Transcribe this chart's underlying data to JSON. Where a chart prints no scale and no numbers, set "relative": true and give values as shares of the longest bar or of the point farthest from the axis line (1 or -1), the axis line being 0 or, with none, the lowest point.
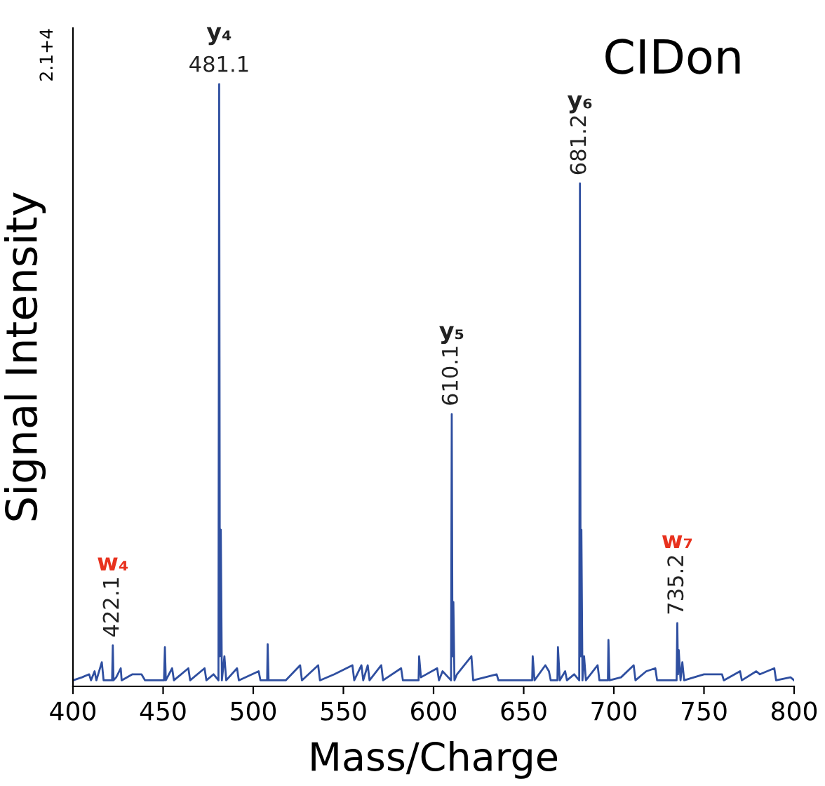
{
  "chart_data": {
    "type": "line",
    "title": "CIDon",
    "xlabel": "Mass/Charge",
    "ylabel": "Signal Intensity",
    "relative": true,
    "xlim": [
      400,
      800
    ],
    "xticks": [
      400,
      450,
      500,
      550,
      600,
      650,
      700,
      750,
      800
    ],
    "grid": false,
    "legend": false,
    "marker": "none",
    "line_style": "solid",
    "annotations": [
      "2.1+4",
      "w₄",
      {
        "text": "422.1",
        "x": 422.1,
        "y": 0.068
      },
      "y₄",
      {
        "text": "481.1",
        "x": 481.1,
        "y": 1.0
      },
      "y₅",
      {
        "text": "610.1",
        "x": 610.1,
        "y": 0.452
      },
      "y₆",
      {
        "text": "681.2",
        "x": 681.2,
        "y": 0.835
      },
      "w₇",
      {
        "text": "735.2",
        "x": 735.2,
        "y": 0.105
      }
    ],
    "series": [
      {
        "color": "#2f4fa0",
        "x": [
          400,
          405,
          409,
          410,
          412,
          413,
          416,
          417,
          421.7,
          422.1,
          422.5,
          424,
          426.5,
          427,
          433,
          438,
          440,
          445,
          450.5,
          451,
          451.5,
          455,
          456,
          464,
          465,
          473,
          474,
          478,
          480.7,
          481.1,
          481.5,
          482,
          482.6,
          484,
          485,
          491,
          492,
          503,
          504,
          507.7,
          508,
          508.5,
          518,
          526,
          527,
          536,
          537,
          545,
          555,
          556,
          560,
          561,
          563.5,
          564.5,
          571,
          572,
          582,
          583,
          591.7,
          592,
          593,
          602,
          603,
          605,
          609.7,
          610.1,
          610.5,
          611,
          611.6,
          613,
          621,
          622,
          635,
          636,
          646,
          654.7,
          655,
          656,
          662,
          664,
          665,
          668.7,
          669,
          670,
          673,
          674,
          678,
          680.8,
          681.2,
          681.6,
          682,
          682.6,
          683.5,
          684.5,
          691,
          692,
          696.7,
          697,
          697.6,
          704,
          711,
          712,
          718,
          723,
          724,
          734.8,
          735.2,
          735.6,
          736,
          737,
          738,
          739,
          750,
          760,
          761,
          770,
          771,
          779,
          781,
          789,
          790,
          798,
          800
        ],
        "values": [
          0.01,
          0.015,
          0.02,
          0.01,
          0.025,
          0.01,
          0.04,
          0.01,
          0.01,
          0.068,
          0.01,
          0.015,
          0.03,
          0.01,
          0.02,
          0.02,
          0.01,
          0.01,
          0.01,
          0.065,
          0.01,
          0.03,
          0.01,
          0.03,
          0.01,
          0.03,
          0.01,
          0.02,
          0.01,
          1.0,
          0.05,
          0.26,
          0.01,
          0.05,
          0.01,
          0.03,
          0.01,
          0.025,
          0.01,
          0.01,
          0.07,
          0.01,
          0.01,
          0.035,
          0.01,
          0.035,
          0.01,
          0.02,
          0.035,
          0.01,
          0.035,
          0.01,
          0.035,
          0.01,
          0.035,
          0.01,
          0.03,
          0.01,
          0.01,
          0.05,
          0.015,
          0.03,
          0.01,
          0.025,
          0.01,
          0.452,
          0.05,
          0.14,
          0.01,
          0.02,
          0.05,
          0.01,
          0.02,
          0.01,
          0.01,
          0.01,
          0.05,
          0.01,
          0.035,
          0.025,
          0.01,
          0.01,
          0.065,
          0.01,
          0.025,
          0.01,
          0.02,
          0.01,
          0.835,
          0.05,
          0.26,
          0.01,
          0.05,
          0.01,
          0.035,
          0.01,
          0.01,
          0.077,
          0.01,
          0.015,
          0.035,
          0.01,
          0.025,
          0.03,
          0.01,
          0.01,
          0.105,
          0.02,
          0.06,
          0.01,
          0.04,
          0.01,
          0.02,
          0.02,
          0.01,
          0.025,
          0.01,
          0.025,
          0.02,
          0.03,
          0.01,
          0.015,
          0.01
        ]
      }
    ]
  }
}
